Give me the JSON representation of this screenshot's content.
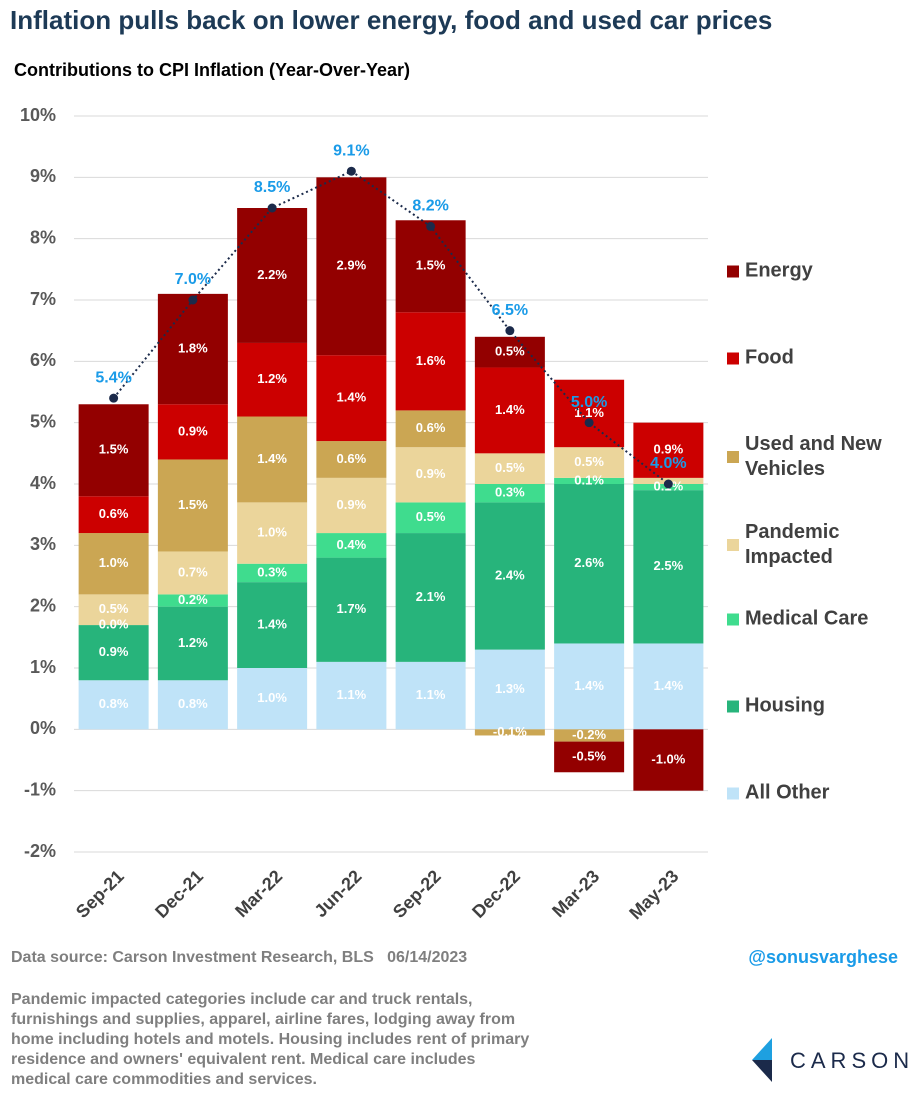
{
  "chart_data": {
    "type": "stacked_bar",
    "title": "Inflation pulls back on lower energy, food and used car prices",
    "subtitle": "Contributions to CPI Inflation (Year-Over-Year)",
    "categories": [
      "Sep-21",
      "Dec-21",
      "Mar-22",
      "Jun-22",
      "Sep-22",
      "Dec-22",
      "Mar-23",
      "May-23"
    ],
    "series": [
      {
        "name": "All Other",
        "color": "#bfe3f8",
        "values": [
          0.8,
          0.8,
          1.0,
          1.1,
          1.1,
          1.3,
          1.4,
          1.4
        ],
        "value_labels": [
          "0.8%",
          "0.8%",
          "1.0%",
          "1.1%",
          "1.1%",
          "1.3%",
          "1.4%",
          "1.4%"
        ]
      },
      {
        "name": "Housing",
        "color": "#27b47b",
        "values": [
          0.9,
          1.2,
          1.4,
          1.7,
          2.1,
          2.4,
          2.6,
          2.5
        ],
        "value_labels": [
          "0.9%",
          "1.2%",
          "1.4%",
          "1.7%",
          "2.1%",
          "2.4%",
          "2.6%",
          "2.5%"
        ]
      },
      {
        "name": "Medical Care",
        "color": "#3fdc8e",
        "values": [
          0.0,
          0.2,
          0.3,
          0.4,
          0.5,
          0.3,
          0.1,
          0.1
        ],
        "value_labels": [
          "0.0%",
          "0.2%",
          "0.3%",
          "0.4%",
          "0.5%",
          "0.3%",
          "0.1%",
          "0.1%"
        ]
      },
      {
        "name": "Pandemic Impacted",
        "color": "#ebd59b",
        "values": [
          0.5,
          0.7,
          1.0,
          0.9,
          0.9,
          0.5,
          0.5,
          0.1
        ],
        "value_labels": [
          "0.5%",
          "0.7%",
          "1.0%",
          "0.9%",
          "0.9%",
          "0.5%",
          "0.5%",
          null
        ]
      },
      {
        "name": "Used and New Vehicles",
        "color": "#cba653",
        "values": [
          1.0,
          1.5,
          1.4,
          0.6,
          0.6,
          -0.1,
          -0.2,
          0.0
        ],
        "value_labels": [
          "1.0%",
          "1.5%",
          "1.4%",
          "0.6%",
          "0.6%",
          "-0.1%",
          "-0.2%",
          null
        ]
      },
      {
        "name": "Food",
        "color": "#cc0000",
        "values": [
          0.6,
          0.9,
          1.2,
          1.4,
          1.6,
          1.4,
          1.1,
          0.9
        ],
        "value_labels": [
          "0.6%",
          "0.9%",
          "1.2%",
          "1.4%",
          "1.6%",
          "1.4%",
          "1.1%",
          "0.9%"
        ]
      },
      {
        "name": "Energy",
        "color": "#930000",
        "values": [
          1.5,
          1.8,
          2.2,
          2.9,
          1.5,
          0.5,
          -0.5,
          -1.0
        ],
        "value_labels": [
          "1.5%",
          "1.8%",
          "2.2%",
          "2.9%",
          "1.5%",
          "0.5%",
          "-0.5%",
          "-1.0%"
        ]
      }
    ],
    "total": {
      "values": [
        5.4,
        7.0,
        8.5,
        9.1,
        8.2,
        6.5,
        5.0,
        4.0
      ],
      "value_labels": [
        "5.4%",
        "7.0%",
        "8.5%",
        "9.1%",
        "8.2%",
        "6.5%",
        "5.0%",
        "4.0%"
      ],
      "color": "#1b2a4a",
      "label_color": "#1a9be8"
    },
    "ylim": [
      -2,
      10
    ],
    "yticks": [
      {
        "value": -2,
        "label": "-2%"
      },
      {
        "value": -1,
        "label": "-1%"
      },
      {
        "value": 0,
        "label": "0%"
      },
      {
        "value": 1,
        "label": "1%"
      },
      {
        "value": 2,
        "label": "2%"
      },
      {
        "value": 3,
        "label": "3%"
      },
      {
        "value": 4,
        "label": "4%"
      },
      {
        "value": 5,
        "label": "5%"
      },
      {
        "value": 6,
        "label": "6%"
      },
      {
        "value": 7,
        "label": "7%"
      },
      {
        "value": 8,
        "label": "8%"
      },
      {
        "value": 9,
        "label": "9%"
      },
      {
        "value": 10,
        "label": "10%"
      }
    ],
    "grid": true,
    "legend": "right"
  },
  "footer": {
    "source": "Data source: Carson Investment Research, BLS   06/14/2023",
    "handle": "@sonusvarghese",
    "note": "Pandemic impacted categories include car and truck rentals, furnishings and supplies, apparel, airline fares, lodging away from home including hotels and motels. Housing includes rent of primary residence and owners' equivalent rent. Medical care includes medical care commodities and services.",
    "logo": "CARSON"
  }
}
